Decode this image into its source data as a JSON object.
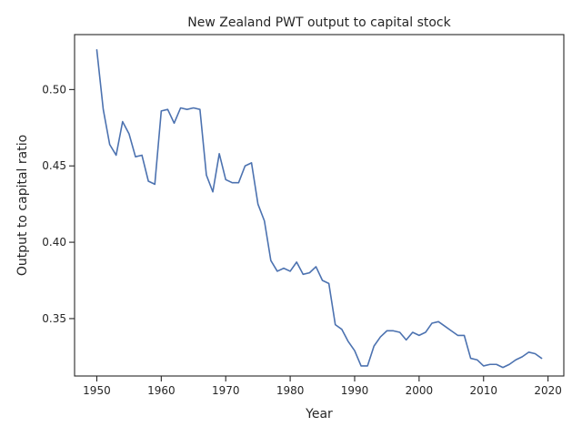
{
  "chart_data": {
    "type": "line",
    "title": "New Zealand PWT output to capital stock",
    "xlabel": "Year",
    "ylabel": "Output to capital ratio",
    "xlim": [
      1946.55,
      2022.45
    ],
    "ylim": [
      0.3124,
      0.536
    ],
    "xticks": [
      1950,
      1960,
      1970,
      1980,
      1990,
      2000,
      2010,
      2020
    ],
    "yticks": [
      0.35,
      0.4,
      0.45,
      0.5
    ],
    "ytick_labels": [
      "0.35",
      "0.40",
      "0.45",
      "0.50"
    ],
    "grid": false,
    "line_color": "#4c72b0",
    "series": [
      {
        "x": [
          1950,
          1951,
          1952,
          1953,
          1954,
          1955,
          1956,
          1957,
          1958,
          1959,
          1960,
          1961,
          1962,
          1963,
          1964,
          1965,
          1966,
          1967,
          1968,
          1969,
          1970,
          1971,
          1972,
          1973,
          1974,
          1975,
          1976,
          1977,
          1978,
          1979,
          1980,
          1981,
          1982,
          1983,
          1984,
          1985,
          1986,
          1987,
          1988,
          1989,
          1990,
          1991,
          1992,
          1993,
          1994,
          1995,
          1996,
          1997,
          1998,
          1999,
          2000,
          2001,
          2002,
          2003,
          2004,
          2005,
          2006,
          2007,
          2008,
          2009,
          2010,
          2011,
          2012,
          2013,
          2014,
          2015,
          2016,
          2017,
          2018,
          2019
        ],
        "values": [
          0.526,
          0.487,
          0.464,
          0.457,
          0.479,
          0.471,
          0.456,
          0.457,
          0.44,
          0.438,
          0.486,
          0.487,
          0.478,
          0.488,
          0.487,
          0.488,
          0.487,
          0.444,
          0.433,
          0.458,
          0.441,
          0.439,
          0.439,
          0.45,
          0.452,
          0.425,
          0.414,
          0.388,
          0.381,
          0.383,
          0.381,
          0.387,
          0.379,
          0.38,
          0.384,
          0.375,
          0.373,
          0.346,
          0.343,
          0.335,
          0.329,
          0.319,
          0.319,
          0.332,
          0.338,
          0.342,
          0.342,
          0.341,
          0.336,
          0.341,
          0.339,
          0.341,
          0.347,
          0.348,
          0.345,
          0.342,
          0.339,
          0.339,
          0.324,
          0.323,
          0.319,
          0.32,
          0.32,
          0.318,
          0.32,
          0.323,
          0.325,
          0.328,
          0.327,
          0.324
        ]
      }
    ]
  }
}
